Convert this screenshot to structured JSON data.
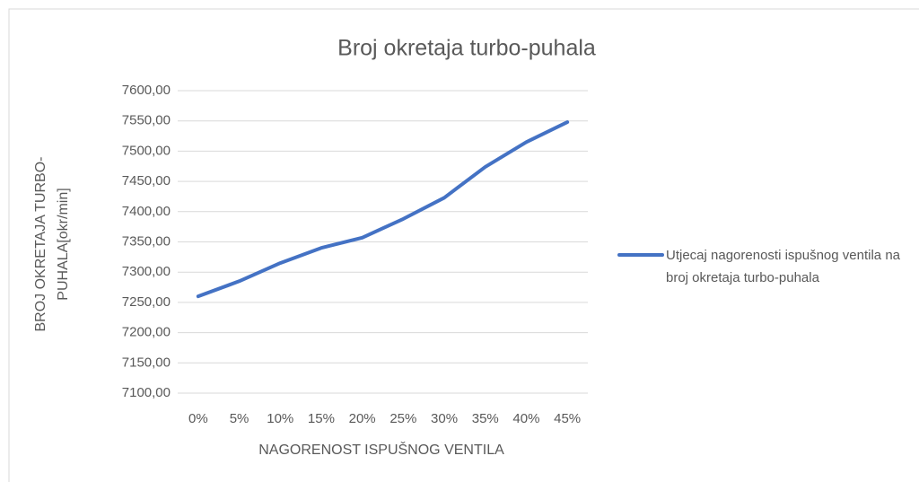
{
  "chart_data": {
    "type": "line",
    "title": "Broj okretaja turbo-puhala",
    "x_label": "NAGORENOST ISPUŠNOG VENTILA",
    "y_label": "BROJ OKRETAJA TURBO-PUHALA[okr/min]",
    "categories": [
      "0%",
      "5%",
      "10%",
      "15%",
      "20%",
      "25%",
      "30%",
      "35%",
      "40%",
      "45%"
    ],
    "series": [
      {
        "name": "Utjecaj nagorenosti ispušnog ventila na broj okretaja turbo-puhala",
        "color": "#4472c4",
        "values": [
          7260,
          7285,
          7315,
          7340,
          7357,
          7388,
          7423,
          7474,
          7515,
          7548
        ]
      }
    ],
    "ylim": [
      7100,
      7600
    ],
    "yticks": [
      {
        "value": 7100,
        "label": "7100,00"
      },
      {
        "value": 7150,
        "label": "7150,00"
      },
      {
        "value": 7200,
        "label": "7200,00"
      },
      {
        "value": 7250,
        "label": "7250,00"
      },
      {
        "value": 7300,
        "label": "7300,00"
      },
      {
        "value": 7350,
        "label": "7350,00"
      },
      {
        "value": 7400,
        "label": "7400,00"
      },
      {
        "value": 7450,
        "label": "7450,00"
      },
      {
        "value": 7500,
        "label": "7500,00"
      },
      {
        "value": 7550,
        "label": "7550,00"
      },
      {
        "value": 7600,
        "label": "7600,00"
      }
    ],
    "grid": true,
    "legend": "right"
  }
}
